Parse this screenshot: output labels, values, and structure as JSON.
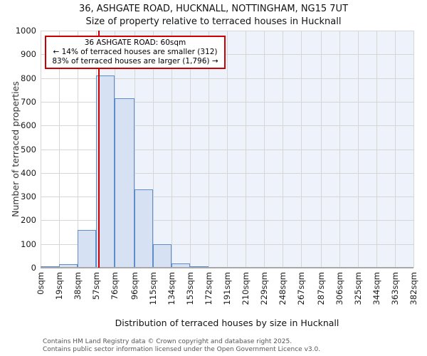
{
  "title": "36, ASHGATE ROAD, HUCKNALL, NOTTINGHAM, NG15 7UT",
  "subtitle": "Size of property relative to terraced houses in Hucknall",
  "annotation": {
    "line1": "36 ASHGATE ROAD: 60sqm",
    "line2": "← 14% of terraced houses are smaller (312)",
    "line3": "83% of terraced houses are larger (1,796) →"
  },
  "footer": {
    "line1": "Contains HM Land Registry data © Crown copyright and database right 2025.",
    "line2": "Contains public sector information licensed under the Open Government Licence v3.0."
  },
  "chart_data": {
    "type": "bar",
    "title": "36, ASHGATE ROAD, HUCKNALL, NOTTINGHAM, NG15 7UT",
    "subtitle": "Size of property relative to terraced houses in Hucknall",
    "xlabel": "Distribution of terraced houses by size in Hucknall",
    "ylabel": "Number of terraced properties",
    "bin_edges_sqm": [
      0,
      19,
      38,
      57,
      76,
      96,
      115,
      134,
      153,
      172,
      191,
      210,
      229,
      248,
      267,
      287,
      306,
      325,
      344,
      363,
      382
    ],
    "x_tick_labels": [
      "0sqm",
      "19sqm",
      "38sqm",
      "57sqm",
      "76sqm",
      "96sqm",
      "115sqm",
      "134sqm",
      "153sqm",
      "172sqm",
      "191sqm",
      "210sqm",
      "229sqm",
      "248sqm",
      "267sqm",
      "287sqm",
      "306sqm",
      "325sqm",
      "344sqm",
      "363sqm",
      "382sqm"
    ],
    "values": [
      6,
      15,
      160,
      810,
      715,
      330,
      100,
      19,
      7,
      4,
      4,
      0,
      0,
      0,
      0,
      0,
      0,
      0,
      0,
      0
    ],
    "ylim": [
      0,
      1000
    ],
    "y_ticks": [
      0,
      100,
      200,
      300,
      400,
      500,
      600,
      700,
      800,
      900,
      1000
    ],
    "xlim_sqm": [
      0,
      382
    ],
    "grid": true,
    "marker": {
      "label": "36 ASHGATE ROAD",
      "value_sqm": 60
    },
    "shaded_region": "right of marker",
    "colors": {
      "bar_fill": "#d6e1f3",
      "bar_border": "#5f8dc9",
      "shade": "#edf2fb",
      "grid": "#d6d6d6",
      "marker": "#cc0000",
      "annotation_border": "#cc0000"
    }
  }
}
